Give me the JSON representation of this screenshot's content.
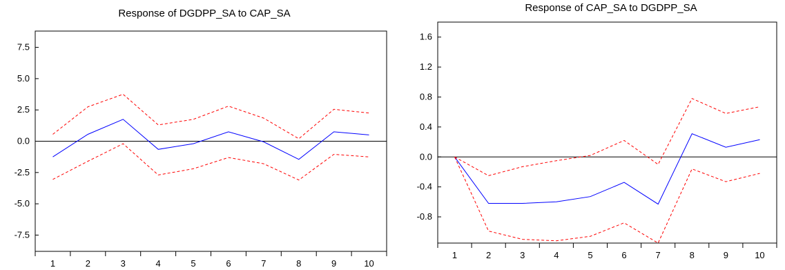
{
  "chart_data": [
    {
      "type": "line",
      "title": "Response of DGDPP_SA to CAP_SA",
      "xlabel": "",
      "ylabel": "",
      "categories": [
        "1",
        "2",
        "3",
        "4",
        "5",
        "6",
        "7",
        "8",
        "9",
        "10"
      ],
      "ylim": [
        -8.8,
        8.8
      ],
      "yticks": [
        -7.5,
        -5.0,
        -2.5,
        0.0,
        2.5,
        5.0,
        7.5
      ],
      "ytick_labels": [
        "-7.5",
        "-5.0",
        "-2.5",
        "0.0",
        "2.5",
        "5.0",
        "7.5"
      ],
      "zero_line": true,
      "grid": false,
      "series": [
        {
          "role": "response",
          "color": "#0000ff",
          "dash": "solid",
          "values": [
            -1.25,
            0.55,
            1.75,
            -0.65,
            -0.2,
            0.75,
            -0.05,
            -1.45,
            0.75,
            0.5
          ]
        },
        {
          "role": "upper",
          "color": "#ff0000",
          "dash": "dashed",
          "values": [
            0.55,
            2.75,
            3.75,
            1.3,
            1.75,
            2.8,
            1.85,
            0.2,
            2.55,
            2.25
          ]
        },
        {
          "role": "lower",
          "color": "#ff0000",
          "dash": "dashed",
          "values": [
            -3.05,
            -1.6,
            -0.2,
            -2.7,
            -2.2,
            -1.3,
            -1.8,
            -3.1,
            -1.05,
            -1.25
          ]
        }
      ]
    },
    {
      "type": "line",
      "title": "Response of CAP_SA to DGDPP_SA",
      "xlabel": "",
      "ylabel": "",
      "categories": [
        "1",
        "2",
        "3",
        "4",
        "5",
        "6",
        "7",
        "8",
        "9",
        "10"
      ],
      "ylim": [
        -1.15,
        1.8
      ],
      "yticks": [
        -0.8,
        -0.4,
        0.0,
        0.4,
        0.8,
        1.2,
        1.6
      ],
      "ytick_labels": [
        "-0.8",
        "-0.4",
        "0.0",
        "0.4",
        "0.8",
        "1.2",
        "1.6"
      ],
      "zero_line": true,
      "grid": false,
      "series": [
        {
          "role": "response",
          "color": "#0000ff",
          "dash": "solid",
          "values": [
            0.0,
            -0.62,
            -0.62,
            -0.6,
            -0.53,
            -0.34,
            -0.63,
            0.31,
            0.13,
            0.23
          ]
        },
        {
          "role": "upper",
          "color": "#ff0000",
          "dash": "dashed",
          "values": [
            0.0,
            -0.25,
            -0.13,
            -0.05,
            0.02,
            0.22,
            -0.1,
            0.78,
            0.58,
            0.67
          ]
        },
        {
          "role": "lower",
          "color": "#ff0000",
          "dash": "dashed",
          "values": [
            0.0,
            -0.99,
            -1.1,
            -1.12,
            -1.06,
            -0.88,
            -1.15,
            -0.16,
            -0.33,
            -0.22
          ]
        }
      ]
    }
  ]
}
